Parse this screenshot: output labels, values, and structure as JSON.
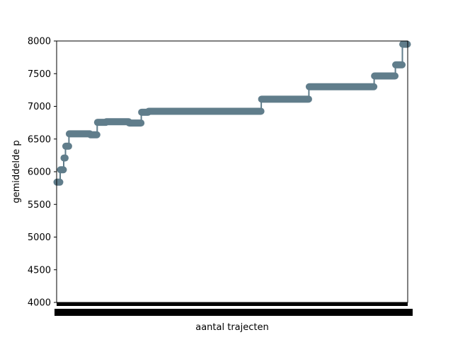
{
  "chart_data": {
    "type": "line",
    "title": "",
    "xlabel": "aantal trajecten",
    "ylabel": "gemiddelde p",
    "ylim": [
      4000,
      8000
    ],
    "yticks": [
      4000,
      4500,
      5000,
      5500,
      6000,
      6500,
      7000,
      7500,
      8000
    ],
    "grid": false,
    "legend": "none",
    "xticks_note": "tick labels overlap into a solid band and are unreadable",
    "series": [
      {
        "color": "#607d8b",
        "marker": "circle",
        "steps": [
          {
            "x_start": 0,
            "x_end": 2,
            "y": 5840
          },
          {
            "x_start": 2,
            "x_end": 4,
            "y": 6030
          },
          {
            "x_start": 4,
            "x_end": 5,
            "y": 6210
          },
          {
            "x_start": 5,
            "x_end": 7,
            "y": 6390
          },
          {
            "x_start": 7,
            "x_end": 19,
            "y": 6580
          },
          {
            "x_start": 19,
            "x_end": 23,
            "y": 6565
          },
          {
            "x_start": 23,
            "x_end": 28,
            "y": 6755
          },
          {
            "x_start": 28,
            "x_end": 41,
            "y": 6765
          },
          {
            "x_start": 41,
            "x_end": 48,
            "y": 6745
          },
          {
            "x_start": 48,
            "x_end": 52,
            "y": 6910
          },
          {
            "x_start": 52,
            "x_end": 116,
            "y": 6925
          },
          {
            "x_start": 116,
            "x_end": 143,
            "y": 7110
          },
          {
            "x_start": 143,
            "x_end": 180,
            "y": 7300
          },
          {
            "x_start": 180,
            "x_end": 192,
            "y": 7465
          },
          {
            "x_start": 192,
            "x_end": 196,
            "y": 7635
          },
          {
            "x_start": 196,
            "x_end": 199,
            "y": 7950
          }
        ]
      }
    ]
  }
}
